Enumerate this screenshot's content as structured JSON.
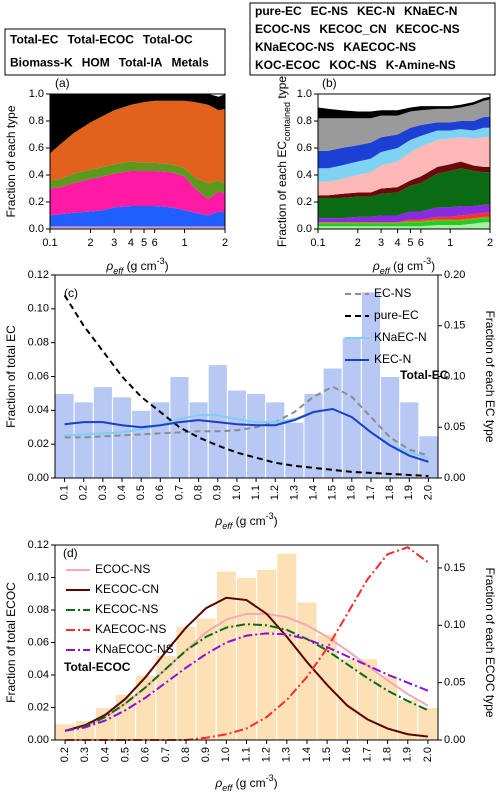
{
  "chart_data": [
    {
      "type": "area",
      "label": "(a)",
      "xscale": "log",
      "xlim": [
        0.1,
        2
      ],
      "ylim": [
        0,
        1
      ],
      "xticks": [
        0.1,
        {
          "value": 0.2,
          "label": "2"
        },
        {
          "value": 0.3,
          "label": "3"
        },
        {
          "value": 0.4,
          "label": "4"
        },
        {
          "value": 0.5,
          "label": "5"
        },
        {
          "value": 0.6,
          "label": "6"
        },
        1,
        2
      ],
      "yticks": [
        {
          "value": 0,
          "label": "0.0"
        },
        0.2,
        0.4,
        0.6,
        0.8,
        {
          "value": 1,
          "label": "1.0"
        }
      ],
      "xlabel": [
        "ρ",
        "eff",
        " (g cm",
        "-3",
        ")"
      ],
      "ylabel": [
        "Fraction of each type"
      ],
      "x": [
        0.1,
        0.12,
        0.15,
        0.2,
        0.25,
        0.3,
        0.4,
        0.5,
        0.6,
        0.8,
        1,
        1.2,
        1.5,
        1.8,
        2
      ],
      "series": [
        {
          "name": "Total-EC",
          "color": "#000000",
          "values": [
            0.44,
            0.37,
            0.29,
            0.21,
            0.16,
            0.12,
            0.08,
            0.06,
            0.05,
            0.05,
            0.05,
            0.06,
            0.08,
            0.1,
            0.11
          ]
        },
        {
          "name": "Total-ECOC",
          "color": "#e2611c",
          "values": [
            0.2,
            0.26,
            0.3,
            0.35,
            0.38,
            0.4,
            0.42,
            0.45,
            0.46,
            0.47,
            0.5,
            0.56,
            0.58,
            0.52,
            0.55
          ]
        },
        {
          "name": "Total-OC",
          "color": "#5b9a1c",
          "values": [
            0.06,
            0.06,
            0.07,
            0.07,
            0.07,
            0.07,
            0.07,
            0.06,
            0.06,
            0.06,
            0.06,
            0.08,
            0.12,
            0.08,
            0.08
          ]
        },
        {
          "name": "Biomass-K",
          "color": "#ff1aa6",
          "values": [
            0.2,
            0.2,
            0.22,
            0.24,
            0.25,
            0.25,
            0.26,
            0.26,
            0.26,
            0.26,
            0.25,
            0.18,
            0.12,
            0.15,
            0.14
          ]
        },
        {
          "name": "HOM",
          "color": "#1f5fff",
          "values": [
            0.08,
            0.09,
            0.1,
            0.11,
            0.12,
            0.14,
            0.15,
            0.15,
            0.15,
            0.14,
            0.12,
            0.1,
            0.08,
            0.11,
            0.1
          ]
        },
        {
          "name": "Total-IA",
          "color": "#a77ae6",
          "values": [
            0.01,
            0.01,
            0.01,
            0.01,
            0.01,
            0.01,
            0.01,
            0.01,
            0.01,
            0.01,
            0.01,
            0.01,
            0.01,
            0.01,
            0.01
          ]
        },
        {
          "name": "Metals",
          "color": "#ffb4b4",
          "values": [
            0.01,
            0.01,
            0.01,
            0.01,
            0.01,
            0.01,
            0.01,
            0.01,
            0.01,
            0.01,
            0.01,
            0.01,
            0.01,
            0.01,
            0.01
          ]
        }
      ]
    },
    {
      "type": "area",
      "label": "(b)",
      "xscale": "log",
      "xlim": [
        0.1,
        2
      ],
      "ylim": [
        0,
        1
      ],
      "xticks": [
        0.1,
        {
          "value": 0.2,
          "label": "2"
        },
        {
          "value": 0.3,
          "label": "3"
        },
        {
          "value": 0.4,
          "label": "4"
        },
        {
          "value": 0.5,
          "label": "5"
        },
        {
          "value": 0.6,
          "label": "6"
        },
        1,
        2
      ],
      "yticks": [
        {
          "value": 0,
          "label": "0.0"
        },
        0.2,
        0.4,
        0.6,
        0.8,
        {
          "value": 1,
          "label": "1.0"
        }
      ],
      "xlabel": [
        "ρ",
        "eff",
        " (g cm",
        "-3",
        ")"
      ],
      "ylabel": [
        "Fraction of each EC",
        "contained",
        " type"
      ],
      "x": [
        0.1,
        0.12,
        0.15,
        0.2,
        0.25,
        0.3,
        0.4,
        0.5,
        0.6,
        0.8,
        1,
        1.2,
        1.5,
        1.8,
        2
      ],
      "series": [
        {
          "name": "pure-EC",
          "color": "#000000",
          "values": [
            0.08,
            0.07,
            0.06,
            0.05,
            0.05,
            0.04,
            0.04,
            0.03,
            0.03,
            0.02,
            0.02,
            0.02,
            0.02,
            0.02,
            0.02
          ]
        },
        {
          "name": "EC-NS",
          "color": "#9a9a9a",
          "values": [
            0.24,
            0.24,
            0.22,
            0.2,
            0.18,
            0.16,
            0.14,
            0.12,
            0.11,
            0.1,
            0.1,
            0.1,
            0.12,
            0.12,
            0.13
          ]
        },
        {
          "name": "KEC-N",
          "color": "#1c3fd4",
          "values": [
            0.13,
            0.13,
            0.13,
            0.12,
            0.12,
            0.11,
            0.1,
            0.09,
            0.08,
            0.06,
            0.06,
            0.06,
            0.07,
            0.08,
            0.08
          ]
        },
        {
          "name": "KNaEC-N",
          "color": "#80d2f2",
          "values": [
            0.1,
            0.1,
            0.1,
            0.1,
            0.1,
            0.1,
            0.1,
            0.09,
            0.08,
            0.07,
            0.06,
            0.06,
            0.06,
            0.07,
            0.07
          ]
        },
        {
          "name": "ECOC-NS",
          "color": "#ffb8b8",
          "values": [
            0.1,
            0.1,
            0.11,
            0.13,
            0.15,
            0.17,
            0.19,
            0.21,
            0.22,
            0.2,
            0.19,
            0.18,
            0.2,
            0.22,
            0.22
          ]
        },
        {
          "name": "KECOC_CN",
          "color": "#6b0a0a",
          "values": [
            0.02,
            0.02,
            0.03,
            0.03,
            0.03,
            0.04,
            0.04,
            0.04,
            0.05,
            0.05,
            0.05,
            0.05,
            0.04,
            0.04,
            0.04
          ]
        },
        {
          "name": "KECOC-NS",
          "color": "#0b6b12",
          "values": [
            0.15,
            0.15,
            0.15,
            0.15,
            0.15,
            0.16,
            0.17,
            0.19,
            0.21,
            0.25,
            0.27,
            0.28,
            0.26,
            0.24,
            0.24
          ]
        },
        {
          "name": "KNaECOC-NS",
          "color": "#8a2be2",
          "values": [
            0.03,
            0.03,
            0.03,
            0.04,
            0.04,
            0.05,
            0.05,
            0.06,
            0.06,
            0.07,
            0.07,
            0.07,
            0.06,
            0.06,
            0.06
          ]
        },
        {
          "name": "KAECOC-NS",
          "color": "#ff3030",
          "values": [
            0,
            0,
            0,
            0,
            0,
            0,
            0,
            0.01,
            0.01,
            0.02,
            0.02,
            0.03,
            0.03,
            0.03,
            0.03
          ]
        },
        {
          "name": "KOC-ECOC",
          "color": "#9a9a00",
          "values": [
            0.01,
            0.01,
            0.01,
            0.01,
            0.01,
            0.01,
            0.01,
            0.01,
            0.01,
            0.01,
            0.01,
            0.01,
            0.01,
            0.01,
            0.01
          ]
        },
        {
          "name": "KOC-NS",
          "color": "#22cc22",
          "values": [
            0.02,
            0.02,
            0.02,
            0.02,
            0.02,
            0.02,
            0.02,
            0.03,
            0.03,
            0.03,
            0.03,
            0.03,
            0.03,
            0.03,
            0.03
          ]
        },
        {
          "name": "K-Amine-NS",
          "color": "#a4f0a4",
          "values": [
            0.02,
            0.02,
            0.02,
            0.02,
            0.02,
            0.02,
            0.02,
            0.02,
            0.02,
            0.03,
            0.03,
            0.03,
            0.04,
            0.05,
            0.05
          ]
        }
      ]
    },
    {
      "type": "bar",
      "label": "(c)",
      "bar_name": "Total-EC",
      "bar_color": "#b7c8f5",
      "bar_label_color": "#cfdbfa",
      "categories": [
        "0.1",
        "0.2",
        "0.3",
        "0.4",
        "0.5",
        "0.6",
        "0.7",
        "0.8",
        "0.9",
        "1.0",
        "1.1",
        "1.2",
        "1.3",
        "1.4",
        "1.5",
        "1.6",
        "1.7",
        "1.8",
        "1.9",
        "2.0"
      ],
      "values": [
        0.05,
        0.045,
        0.054,
        0.048,
        0.04,
        0.045,
        0.06,
        0.045,
        0.067,
        0.052,
        0.05,
        0.045,
        0.033,
        0.05,
        0.065,
        0.083,
        0.11,
        0.06,
        0.045,
        0.025
      ],
      "ylim": [
        0,
        0.12
      ],
      "yticks": [
        {
          "value": 0,
          "label": "0.00"
        },
        0.02,
        0.04,
        0.06,
        0.08,
        {
          "value": 0.1,
          "label": "0.10"
        },
        0.12
      ],
      "y2lim": [
        0,
        0.2
      ],
      "y2ticks": [
        {
          "value": 0,
          "label": "0.00"
        },
        0.05,
        {
          "value": 0.1,
          "label": "0.10"
        },
        0.15,
        {
          "value": 0.2,
          "label": "0.20"
        }
      ],
      "xlabel": [
        "ρ",
        "eff",
        " (g cm",
        "-3",
        ")"
      ],
      "ylabel": [
        "Fraction of total EC"
      ],
      "y2label": [
        "Fraction of each EC type"
      ],
      "series": [
        {
          "name": "EC-NS",
          "color": "#8c8c8c",
          "style": "dashed",
          "axis": "y2",
          "values": [
            0.04,
            0.04,
            0.041,
            0.042,
            0.043,
            0.044,
            0.045,
            0.046,
            0.046,
            0.047,
            0.05,
            0.055,
            0.065,
            0.08,
            0.09,
            0.08,
            0.06,
            0.04,
            0.028,
            0.022
          ]
        },
        {
          "name": "pure-EC",
          "color": "#000000",
          "style": "dashed",
          "axis": "y2",
          "values": [
            0.18,
            0.15,
            0.125,
            0.1,
            0.08,
            0.065,
            0.05,
            0.04,
            0.032,
            0.025,
            0.02,
            0.015,
            0.012,
            0.01,
            0.008,
            0.006,
            0.005,
            0.004,
            0.003,
            0.002
          ]
        },
        {
          "name": "KNaEC-N",
          "color": "#7fcff0",
          "style": "solid",
          "axis": "y2",
          "values": [
            0.042,
            0.043,
            0.044,
            0.045,
            0.048,
            0.052,
            0.058,
            0.062,
            0.062,
            0.058,
            0.055,
            0.055,
            0.058,
            0.065,
            0.068,
            0.06,
            0.045,
            0.033,
            0.025,
            0.02
          ]
        },
        {
          "name": "KEC-N",
          "color": "#1c3fc4",
          "style": "solid",
          "axis": "y2",
          "values": [
            0.053,
            0.055,
            0.055,
            0.052,
            0.05,
            0.052,
            0.055,
            0.057,
            0.055,
            0.053,
            0.052,
            0.052,
            0.057,
            0.065,
            0.068,
            0.06,
            0.045,
            0.032,
            0.022,
            0.016
          ]
        }
      ]
    },
    {
      "type": "bar",
      "label": "(d)",
      "bar_name": "Total-ECOC",
      "bar_color": "#fde1b6",
      "bar_label_color": "#fbe6c6",
      "categories": [
        "0.2",
        "0.3",
        "0.4",
        "0.5",
        "0.6",
        "0.7",
        "0.8",
        "0.9",
        "1.0",
        "1.1",
        "1.2",
        "1.3",
        "1.4",
        "1.5",
        "1.6",
        "1.7",
        "1.8",
        "1.9",
        "2.0"
      ],
      "values": [
        0.01,
        0.012,
        0.02,
        0.028,
        0.04,
        0.052,
        0.07,
        0.075,
        0.104,
        0.1,
        0.105,
        0.115,
        0.085,
        0.065,
        0.05,
        0.05,
        0.04,
        0.025,
        0.02
      ],
      "ylim": [
        0,
        0.12
      ],
      "yticks": [
        {
          "value": 0,
          "label": "0.00"
        },
        0.02,
        0.04,
        0.06,
        0.08,
        {
          "value": 0.1,
          "label": "0.10"
        },
        0.12
      ],
      "y2lim": [
        0,
        0.17
      ],
      "y2ticks": [
        {
          "value": 0,
          "label": "0.00"
        },
        0.05,
        {
          "value": 0.1,
          "label": "0.10"
        },
        0.15
      ],
      "xlabel": [
        "ρ",
        "eff",
        " (g cm",
        "-3",
        ")"
      ],
      "ylabel": [
        "Fraction of total ECOC"
      ],
      "y2label": [
        "Fraction of each ECOC type"
      ],
      "series": [
        {
          "name": "ECOC-NS",
          "color": "#f7a8b0",
          "style": "solid",
          "axis": "y2",
          "values": [
            0.008,
            0.012,
            0.02,
            0.032,
            0.046,
            0.062,
            0.078,
            0.094,
            0.105,
            0.11,
            0.11,
            0.107,
            0.1,
            0.09,
            0.078,
            0.065,
            0.052,
            0.04,
            0.03
          ]
        },
        {
          "name": "KECOC-CN",
          "color": "#5c0000",
          "style": "solid",
          "axis": "y2",
          "values": [
            0.008,
            0.013,
            0.022,
            0.036,
            0.055,
            0.077,
            0.098,
            0.115,
            0.124,
            0.122,
            0.11,
            0.09,
            0.068,
            0.048,
            0.03,
            0.018,
            0.01,
            0.005,
            0.003
          ]
        },
        {
          "name": "KECOC-NS",
          "color": "#0b6b12",
          "style": "dashdot",
          "axis": "y2",
          "values": [
            0.008,
            0.012,
            0.02,
            0.032,
            0.046,
            0.062,
            0.078,
            0.09,
            0.098,
            0.101,
            0.1,
            0.096,
            0.088,
            0.078,
            0.066,
            0.054,
            0.043,
            0.034,
            0.026
          ]
        },
        {
          "name": "KAECOC-NS",
          "color": "#ff2a2a",
          "style": "dashdot",
          "axis": "y2",
          "values": [
            0,
            0,
            0,
            0,
            0,
            0,
            0,
            0.002,
            0.005,
            0.01,
            0.02,
            0.035,
            0.055,
            0.08,
            0.11,
            0.14,
            0.162,
            0.168,
            0.155
          ]
        },
        {
          "name": "KNaECOC-NS",
          "color": "#8a10e0",
          "style": "dashdot",
          "axis": "y2",
          "values": [
            0.008,
            0.011,
            0.017,
            0.026,
            0.037,
            0.05,
            0.063,
            0.075,
            0.085,
            0.091,
            0.093,
            0.092,
            0.088,
            0.081,
            0.073,
            0.065,
            0.057,
            0.05,
            0.043
          ]
        }
      ]
    }
  ]
}
